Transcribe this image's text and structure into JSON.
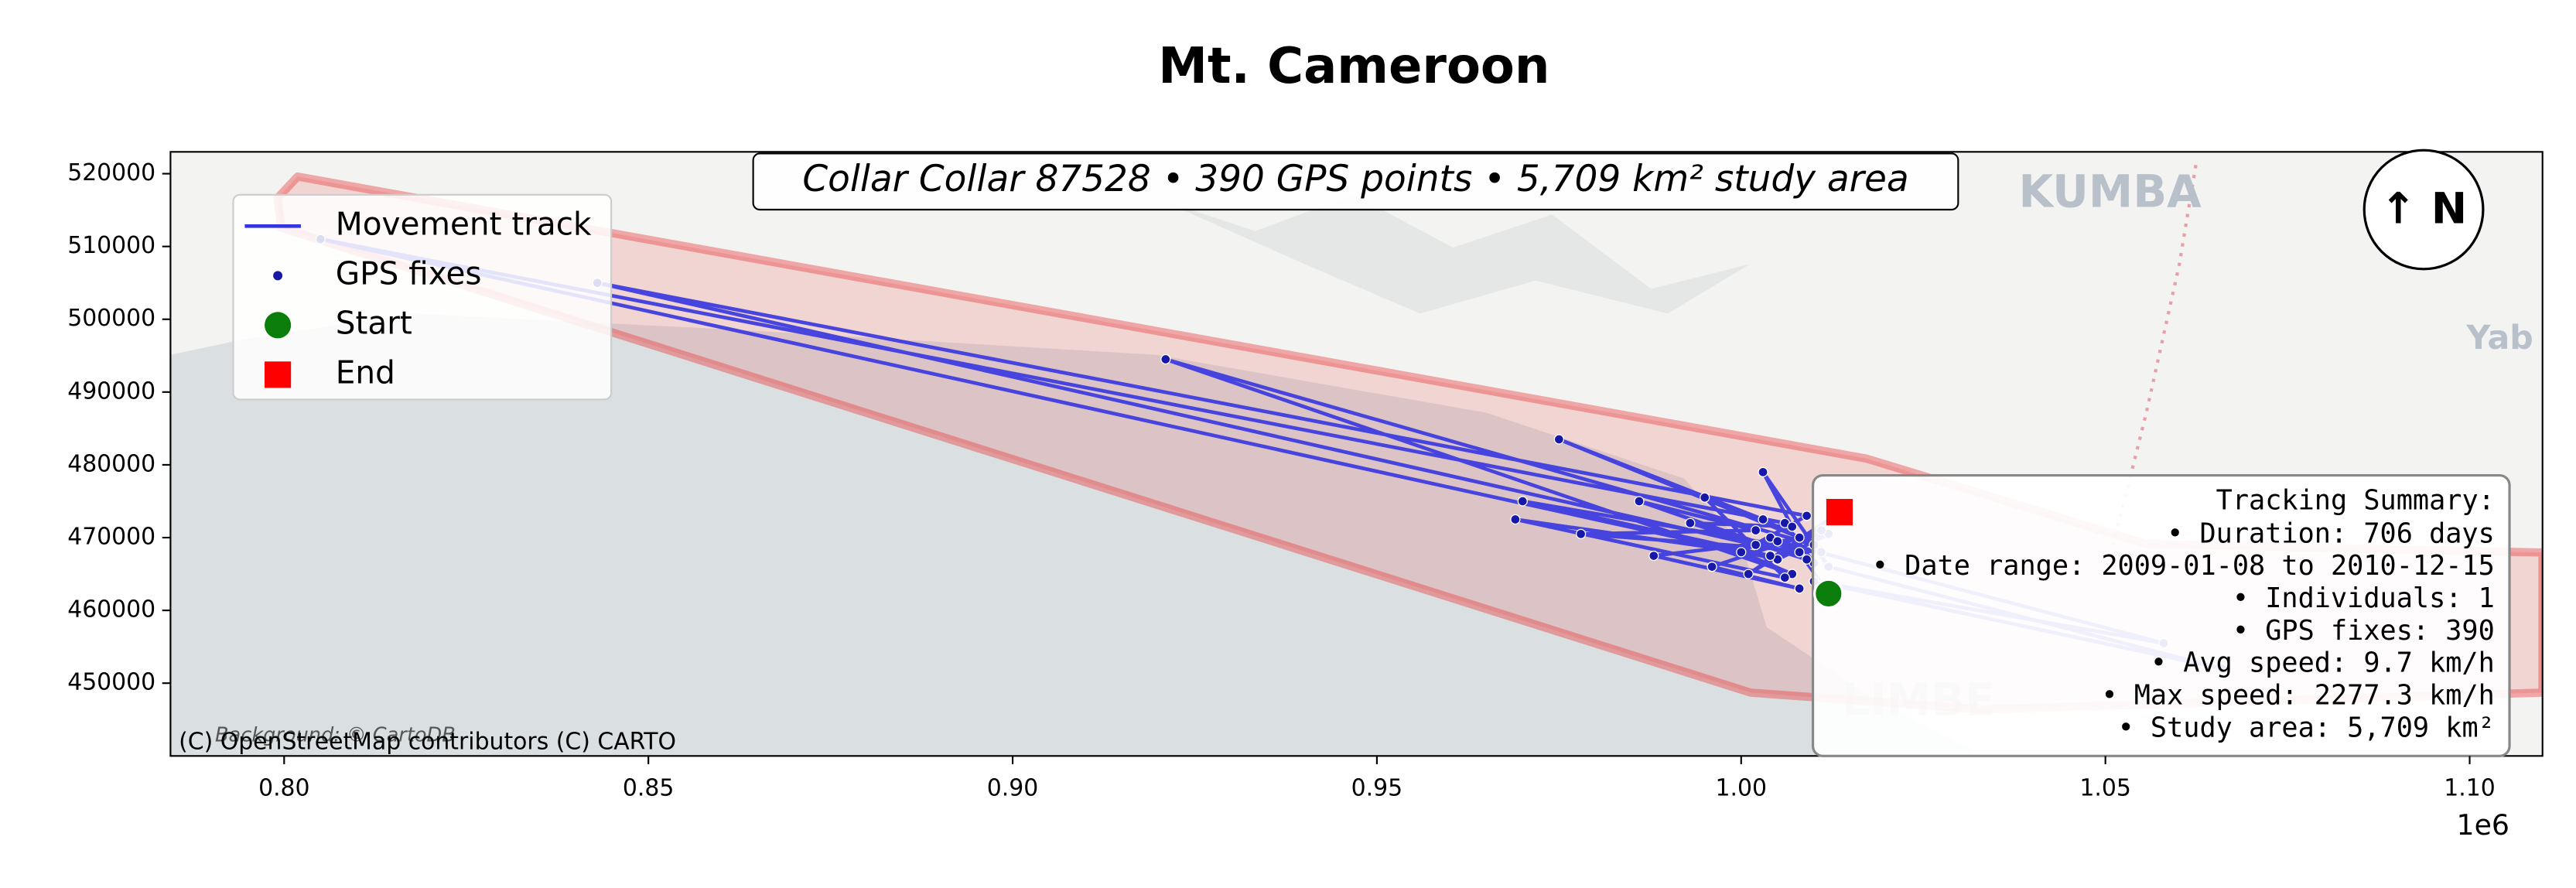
{
  "chart_data": {
    "type": "map-track",
    "title": "Mt. Cameroon",
    "subtitle": "Collar Collar 87528 • 390 GPS points • 5,709 km² study area",
    "xlim": [
      784400,
      1110000
    ],
    "ylim": [
      440000,
      523000
    ],
    "xticks": [
      {
        "value": 800000,
        "label": "0.80"
      },
      {
        "value": 850000,
        "label": "0.85"
      },
      {
        "value": 900000,
        "label": "0.90"
      },
      {
        "value": 950000,
        "label": "0.95"
      },
      {
        "value": 1000000,
        "label": "1.00"
      },
      {
        "value": 1050000,
        "label": "1.05"
      },
      {
        "value": 1100000,
        "label": "1.10"
      }
    ],
    "x_offset_label": "1e6",
    "yticks": [
      450000,
      460000,
      470000,
      480000,
      490000,
      500000,
      510000,
      520000
    ],
    "legend": "upper left",
    "study_area": {
      "color": "#e8474a",
      "x": [
        799100,
        801850,
        1017200,
        1055700,
        1110000,
        1110000,
        1033000,
        1001300,
        799600
      ],
      "y": [
        516650,
        519600,
        480860,
        469100,
        467950,
        448700,
        446400,
        448700,
        512580
      ]
    },
    "track": {
      "name": "Movement track",
      "color": "#3535e0",
      "x": [
        1012000,
        1008000,
        1004000,
        1010000,
        1006000,
        805000,
        1005000,
        1012000,
        1002000,
        843000,
        1009000,
        1000000,
        1007000,
        921000,
        1010000,
        1003000,
        975000,
        1008000,
        995000,
        1006000,
        969000,
        1004000,
        970000,
        1011000,
        978000,
        1002000,
        986000,
        1009000,
        993000,
        1007000,
        1003000,
        1012000,
        1066000,
        1010000,
        1058000,
        1005000,
        988000,
        1008000,
        996000,
        1011000,
        1001000,
        1013500
      ],
      "y": [
        462300,
        468000,
        470000,
        466500,
        472000,
        511000,
        467000,
        470500,
        469000,
        505000,
        473000,
        468000,
        465000,
        494500,
        469000,
        472500,
        483500,
        470000,
        475500,
        464500,
        472500,
        467500,
        475000,
        468000,
        470500,
        471000,
        475000,
        467000,
        472000,
        471500,
        479000,
        466000,
        452000,
        464000,
        455500,
        469500,
        467500,
        463000,
        466000,
        471000,
        465000,
        473500
      ]
    },
    "fixes": {
      "name": "GPS fixes",
      "color": "#1717a8"
    },
    "start": {
      "name": "Start",
      "color": "#0a7d0a",
      "x": 1012000,
      "y": 462300
    },
    "end": {
      "name": "End",
      "color": "#ff0000",
      "x": 1013500,
      "y": 473500
    },
    "map_labels": [
      "KUMBA",
      "LIMBE",
      "Yab"
    ],
    "attribution": [
      "(C) OpenStreetMap contributors (C) CARTO",
      "Background: © CartoDB"
    ],
    "north_label": "↑ N",
    "summary": {
      "title": "Tracking Summary:",
      "lines": [
        "• Duration: 706 days",
        "• Date range: 2009-01-08 to 2010-12-15",
        "• Individuals: 1",
        "• GPS fixes: 390",
        "• Avg speed: 9.7 km/h",
        "• Max speed: 2277.3 km/h",
        "• Study area: 5,709 km²"
      ]
    }
  }
}
